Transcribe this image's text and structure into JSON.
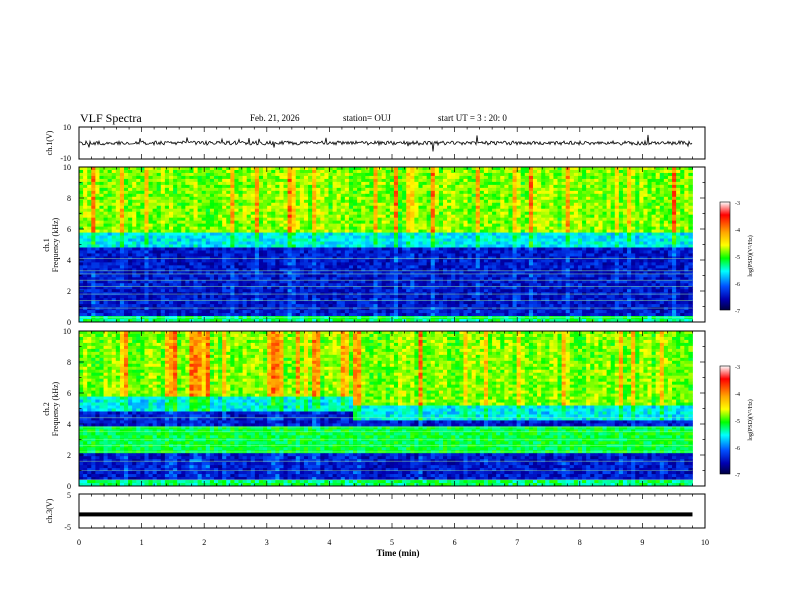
{
  "header": {
    "title": "VLF Spectra",
    "date": "Feb. 21, 2026",
    "station": "station= OUJ",
    "start_time": "start  UT =  3 : 20: 0"
  },
  "chart_data": [
    {
      "id": "ch1-waveform",
      "type": "line",
      "ylabel": "ch.1(V)",
      "ylim": [
        -10,
        10
      ],
      "yticks": [
        "10",
        "-10"
      ],
      "xlim": [
        0,
        10
      ],
      "line_color": "#000000"
    },
    {
      "id": "ch1-spectrogram",
      "type": "heatmap",
      "ylabel": "ch.1 Frequency (kHz)",
      "ylabel_line1": "ch.1",
      "ylabel_line2": "Frequency (kHz)",
      "ylim": [
        0,
        10
      ],
      "yticks": [
        "0",
        "2",
        "4",
        "6",
        "8",
        "10"
      ],
      "xlim": [
        0,
        10
      ],
      "colorbar": {
        "label": "log(PSD)(V²/Hz)",
        "ticks": [
          "-3",
          "-4",
          "-5",
          "-6",
          "-7"
        ],
        "range": [
          -7,
          -3
        ]
      }
    },
    {
      "id": "ch2-spectrogram",
      "type": "heatmap",
      "ylabel": "ch.2 Frequency (kHz)",
      "ylabel_line1": "ch.2",
      "ylabel_line2": "Frequency (kHz)",
      "ylim": [
        0,
        10
      ],
      "yticks": [
        "0",
        "2",
        "4",
        "6",
        "8",
        "10"
      ],
      "xlim": [
        0,
        10
      ],
      "colorbar": {
        "label": "log(PSD)(V²/Hz)",
        "ticks": [
          "-3",
          "-4",
          "-5",
          "-6",
          "-7"
        ],
        "range": [
          -7,
          -3
        ]
      }
    },
    {
      "id": "ch3-waveform",
      "type": "line",
      "ylabel": "ch.3(V)",
      "ylim": [
        -5,
        5
      ],
      "yticks": [
        "5",
        "-5"
      ],
      "xlim": [
        0,
        10
      ],
      "line_color": "#000000"
    }
  ],
  "x_axis": {
    "label": "Time (min)",
    "range": [
      0,
      10
    ],
    "ticks": [
      "0",
      "1",
      "2",
      "3",
      "4",
      "5",
      "6",
      "7",
      "8",
      "9",
      "10"
    ],
    "data_end_min": 9.8
  },
  "colorbar_colors": [
    "#8b0000",
    "#ff0000",
    "#ffa500",
    "#ffff00",
    "#00ff00",
    "#00ffff",
    "#0060ff",
    "#0000a0",
    "#00004a"
  ]
}
